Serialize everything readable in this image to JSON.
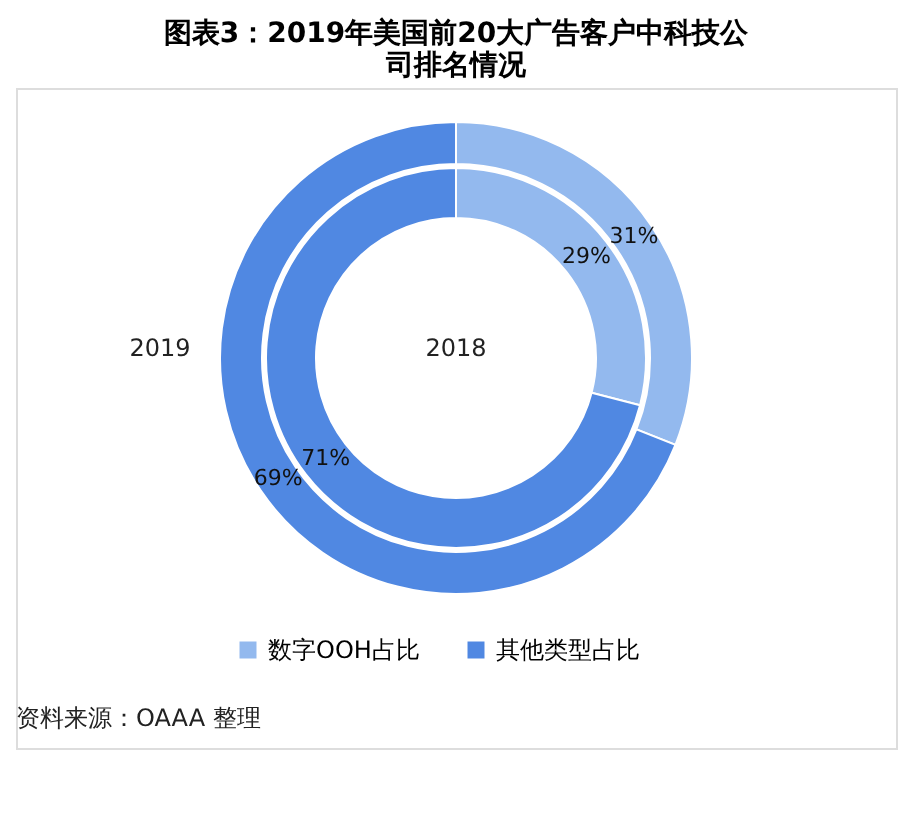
{
  "chart_data": {
    "type": "donut",
    "title": [
      "图表3：2019年美国前20大广告客户中科技公",
      "司排名情况"
    ],
    "categories": [
      "数字OOH占比",
      "其他类型占比"
    ],
    "colors": [
      "#93b9ee",
      "#5088e2"
    ],
    "series": [
      {
        "name": "2019",
        "values": [
          31,
          69
        ],
        "value_labels": [
          "31%",
          "69%"
        ]
      },
      {
        "name": "2018",
        "values": [
          29,
          71
        ],
        "value_labels": [
          "29%",
          "71%"
        ]
      }
    ],
    "legend": "bottom",
    "annotations": [
      "资料来源：OAAA 整理"
    ]
  }
}
